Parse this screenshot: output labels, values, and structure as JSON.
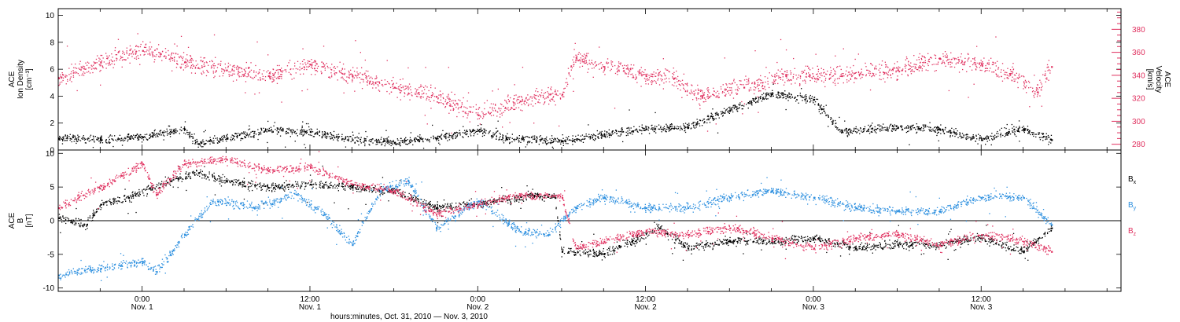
{
  "chart_data": {
    "type": "scatter",
    "time_axis": {
      "label": "hours:minutes, Oct. 31, 2010 — Nov.  3, 2010",
      "start": "2010-10-31T18:00",
      "end": "2010-11-03T22:00",
      "ticks": [
        {
          "t": "2010-11-01T00:00",
          "hm": "0:00",
          "day": "Nov. 1"
        },
        {
          "t": "2010-11-01T12:00",
          "hm": "12:00",
          "day": "Nov. 1"
        },
        {
          "t": "2010-11-02T00:00",
          "hm": "0:00",
          "day": "Nov. 2"
        },
        {
          "t": "2010-11-02T12:00",
          "hm": "12:00",
          "day": "Nov. 2"
        },
        {
          "t": "2010-11-03T00:00",
          "hm": "0:00",
          "day": "Nov. 3"
        },
        {
          "t": "2010-11-03T12:00",
          "hm": "12:00",
          "day": "Nov. 3"
        }
      ]
    },
    "panels": [
      {
        "ylabel_left": [
          "ACE",
          "Ion Density",
          "[cm⁻³]"
        ],
        "ylim_left": [
          0,
          10.5
        ],
        "yticks_left": [
          0,
          2,
          4,
          6,
          8,
          10
        ],
        "ylabel_right": [
          "ACE",
          "Velocity",
          "[km/s]"
        ],
        "ylim_right": [
          275,
          398
        ],
        "yticks_right": [
          280,
          300,
          320,
          340,
          360,
          380
        ],
        "right_color": "#e0305f",
        "series": [
          {
            "axis": "left",
            "color": "#000000",
            "points": [
              [
                "2010-10-31T18:00",
                0.9
              ],
              [
                "2010-10-31T21:00",
                0.8
              ],
              [
                "2010-11-01T00:00",
                1.0
              ],
              [
                "2010-11-01T03:00",
                1.6
              ],
              [
                "2010-11-01T04:00",
                0.5
              ],
              [
                "2010-11-01T06:00",
                0.9
              ],
              [
                "2010-11-01T09:00",
                1.5
              ],
              [
                "2010-11-01T12:00",
                1.4
              ],
              [
                "2010-11-01T15:00",
                0.8
              ],
              [
                "2010-11-01T18:00",
                0.6
              ],
              [
                "2010-11-01T21:00",
                0.9
              ],
              [
                "2010-11-02T00:00",
                1.5
              ],
              [
                "2010-11-02T02:00",
                0.9
              ],
              [
                "2010-11-02T06:00",
                0.7
              ],
              [
                "2010-11-02T09:00",
                1.2
              ],
              [
                "2010-11-02T12:00",
                1.6
              ],
              [
                "2010-11-02T15:00",
                1.7
              ],
              [
                "2010-11-02T18:00",
                3.0
              ],
              [
                "2010-11-02T21:00",
                4.2
              ],
              [
                "2010-11-03T00:00",
                3.8
              ],
              [
                "2010-11-03T02:00",
                1.4
              ],
              [
                "2010-11-03T06:00",
                1.7
              ],
              [
                "2010-11-03T09:00",
                1.6
              ],
              [
                "2010-11-03T12:00",
                0.8
              ],
              [
                "2010-11-03T15:00",
                1.6
              ],
              [
                "2010-11-03T17:00",
                0.8
              ]
            ]
          },
          {
            "axis": "right",
            "color": "#e0305f",
            "points": [
              [
                "2010-10-31T18:00",
                338
              ],
              [
                "2010-10-31T21:00",
                352
              ],
              [
                "2010-11-01T00:00",
                362
              ],
              [
                "2010-11-01T03:00",
                352
              ],
              [
                "2010-11-01T06:00",
                345
              ],
              [
                "2010-11-01T09:00",
                340
              ],
              [
                "2010-11-01T12:00",
                350
              ],
              [
                "2010-11-01T15:00",
                340
              ],
              [
                "2010-11-01T18:00",
                330
              ],
              [
                "2010-11-01T21:00",
                322
              ],
              [
                "2010-11-02T00:00",
                306
              ],
              [
                "2010-11-02T03:00",
                318
              ],
              [
                "2010-11-02T06:00",
                324
              ],
              [
                "2010-11-02T07:00",
                356
              ],
              [
                "2010-11-02T09:00",
                348
              ],
              [
                "2010-11-02T12:00",
                340
              ],
              [
                "2010-11-02T14:00",
                338
              ],
              [
                "2010-11-02T16:00",
                322
              ],
              [
                "2010-11-02T19:00",
                330
              ],
              [
                "2010-11-02T22:00",
                340
              ],
              [
                "2010-11-03T02:00",
                340
              ],
              [
                "2010-11-03T06:00",
                345
              ],
              [
                "2010-11-03T09:00",
                355
              ],
              [
                "2010-11-03T12:00",
                350
              ],
              [
                "2010-11-03T14:00",
                342
              ],
              [
                "2010-11-03T16:00",
                326
              ],
              [
                "2010-11-03T17:00",
                348
              ]
            ]
          }
        ]
      },
      {
        "ylabel_left": [
          "ACE",
          "B",
          "[nT]"
        ],
        "ylim_left": [
          -10.5,
          10.5
        ],
        "yticks_left": [
          -10,
          -5,
          0,
          5,
          10
        ],
        "zero_line": true,
        "legend": [
          {
            "main": "B",
            "sub": "x",
            "color": "#000000"
          },
          {
            "main": "B",
            "sub": "y",
            "color": "#2c8fdf"
          },
          {
            "main": "B",
            "sub": "z",
            "color": "#e0305f"
          }
        ],
        "series": [
          {
            "name": "Bx",
            "color": "#000000",
            "points": [
              [
                "2010-10-31T18:00",
                0.5
              ],
              [
                "2010-10-31T20:00",
                -0.5
              ],
              [
                "2010-10-31T21:00",
                2.5
              ],
              [
                "2010-10-31T23:00",
                3.5
              ],
              [
                "2010-11-01T02:00",
                6.0
              ],
              [
                "2010-11-01T04:00",
                7.2
              ],
              [
                "2010-11-01T06:00",
                6.0
              ],
              [
                "2010-11-01T09:00",
                5.0
              ],
              [
                "2010-11-01T12:00",
                5.5
              ],
              [
                "2010-11-01T15:00",
                5.0
              ],
              [
                "2010-11-01T18:00",
                4.5
              ],
              [
                "2010-11-01T21:00",
                2.0
              ],
              [
                "2010-11-02T00:00",
                2.5
              ],
              [
                "2010-11-02T04:00",
                3.8
              ],
              [
                "2010-11-02T05:30",
                3.5
              ],
              [
                "2010-11-02T06:00",
                -4.5
              ],
              [
                "2010-11-02T09:00",
                -4.8
              ],
              [
                "2010-11-02T11:00",
                -3.0
              ],
              [
                "2010-11-02T13:00",
                -1.0
              ],
              [
                "2010-11-02T15:00",
                -4.0
              ],
              [
                "2010-11-02T18:00",
                -3.0
              ],
              [
                "2010-11-02T21:00",
                -3.0
              ],
              [
                "2010-11-03T00:00",
                -2.5
              ],
              [
                "2010-11-03T03:00",
                -4.0
              ],
              [
                "2010-11-03T06:00",
                -3.5
              ],
              [
                "2010-11-03T09:00",
                -3.5
              ],
              [
                "2010-11-03T12:00",
                -2.5
              ],
              [
                "2010-11-03T15:00",
                -4.5
              ],
              [
                "2010-11-03T17:00",
                -1.0
              ]
            ]
          },
          {
            "name": "By",
            "color": "#2c8fdf",
            "points": [
              [
                "2010-10-31T18:00",
                -8.0
              ],
              [
                "2010-10-31T21:00",
                -7.0
              ],
              [
                "2010-11-01T00:00",
                -6.0
              ],
              [
                "2010-11-01T01:00",
                -7.5
              ],
              [
                "2010-11-01T02:00",
                -5.0
              ],
              [
                "2010-11-01T03:00",
                -2.0
              ],
              [
                "2010-11-01T05:00",
                3.0
              ],
              [
                "2010-11-01T08:00",
                2.0
              ],
              [
                "2010-11-01T11:00",
                4.0
              ],
              [
                "2010-11-01T13:00",
                1.0
              ],
              [
                "2010-11-01T15:00",
                -3.5
              ],
              [
                "2010-11-01T17:00",
                4.5
              ],
              [
                "2010-11-01T19:00",
                6.0
              ],
              [
                "2010-11-01T21:00",
                -1.0
              ],
              [
                "2010-11-02T00:00",
                3.0
              ],
              [
                "2010-11-02T03:00",
                -1.5
              ],
              [
                "2010-11-02T05:00",
                -2.0
              ],
              [
                "2010-11-02T07:00",
                2.0
              ],
              [
                "2010-11-02T09:00",
                3.5
              ],
              [
                "2010-11-02T12:00",
                2.0
              ],
              [
                "2010-11-02T15:00",
                2.0
              ],
              [
                "2010-11-02T18:00",
                3.5
              ],
              [
                "2010-11-02T21:00",
                4.5
              ],
              [
                "2010-11-03T00:00",
                3.5
              ],
              [
                "2010-11-03T03:00",
                2.0
              ],
              [
                "2010-11-03T06:00",
                1.5
              ],
              [
                "2010-11-03T09:00",
                1.5
              ],
              [
                "2010-11-03T12:00",
                3.5
              ],
              [
                "2010-11-03T15:00",
                3.5
              ],
              [
                "2010-11-03T17:00",
                -0.5
              ]
            ]
          },
          {
            "name": "Bz",
            "color": "#e0305f",
            "points": [
              [
                "2010-10-31T18:00",
                2.0
              ],
              [
                "2010-10-31T22:00",
                6.0
              ],
              [
                "2010-11-01T00:00",
                8.5
              ],
              [
                "2010-11-01T01:00",
                4.0
              ],
              [
                "2010-11-01T03:00",
                8.5
              ],
              [
                "2010-11-01T06:00",
                9.2
              ],
              [
                "2010-11-01T09:00",
                7.5
              ],
              [
                "2010-11-01T12:00",
                8.0
              ],
              [
                "2010-11-01T15:00",
                5.5
              ],
              [
                "2010-11-01T18:00",
                4.5
              ],
              [
                "2010-11-01T21:00",
                1.0
              ],
              [
                "2010-11-02T00:00",
                2.5
              ],
              [
                "2010-11-02T03:00",
                3.8
              ],
              [
                "2010-11-02T06:00",
                3.5
              ],
              [
                "2010-11-02T07:00",
                -4.0
              ],
              [
                "2010-11-02T09:00",
                -3.0
              ],
              [
                "2010-11-02T12:00",
                -1.5
              ],
              [
                "2010-11-02T15:00",
                -2.0
              ],
              [
                "2010-11-02T18:00",
                -1.0
              ],
              [
                "2010-11-02T21:00",
                -2.5
              ],
              [
                "2010-11-03T00:00",
                -4.0
              ],
              [
                "2010-11-03T03:00",
                -2.5
              ],
              [
                "2010-11-03T06:00",
                -2.0
              ],
              [
                "2010-11-03T09:00",
                -3.5
              ],
              [
                "2010-11-03T12:00",
                -2.0
              ],
              [
                "2010-11-03T15:00",
                -3.0
              ],
              [
                "2010-11-03T17:00",
                -4.5
              ]
            ]
          }
        ]
      }
    ]
  }
}
